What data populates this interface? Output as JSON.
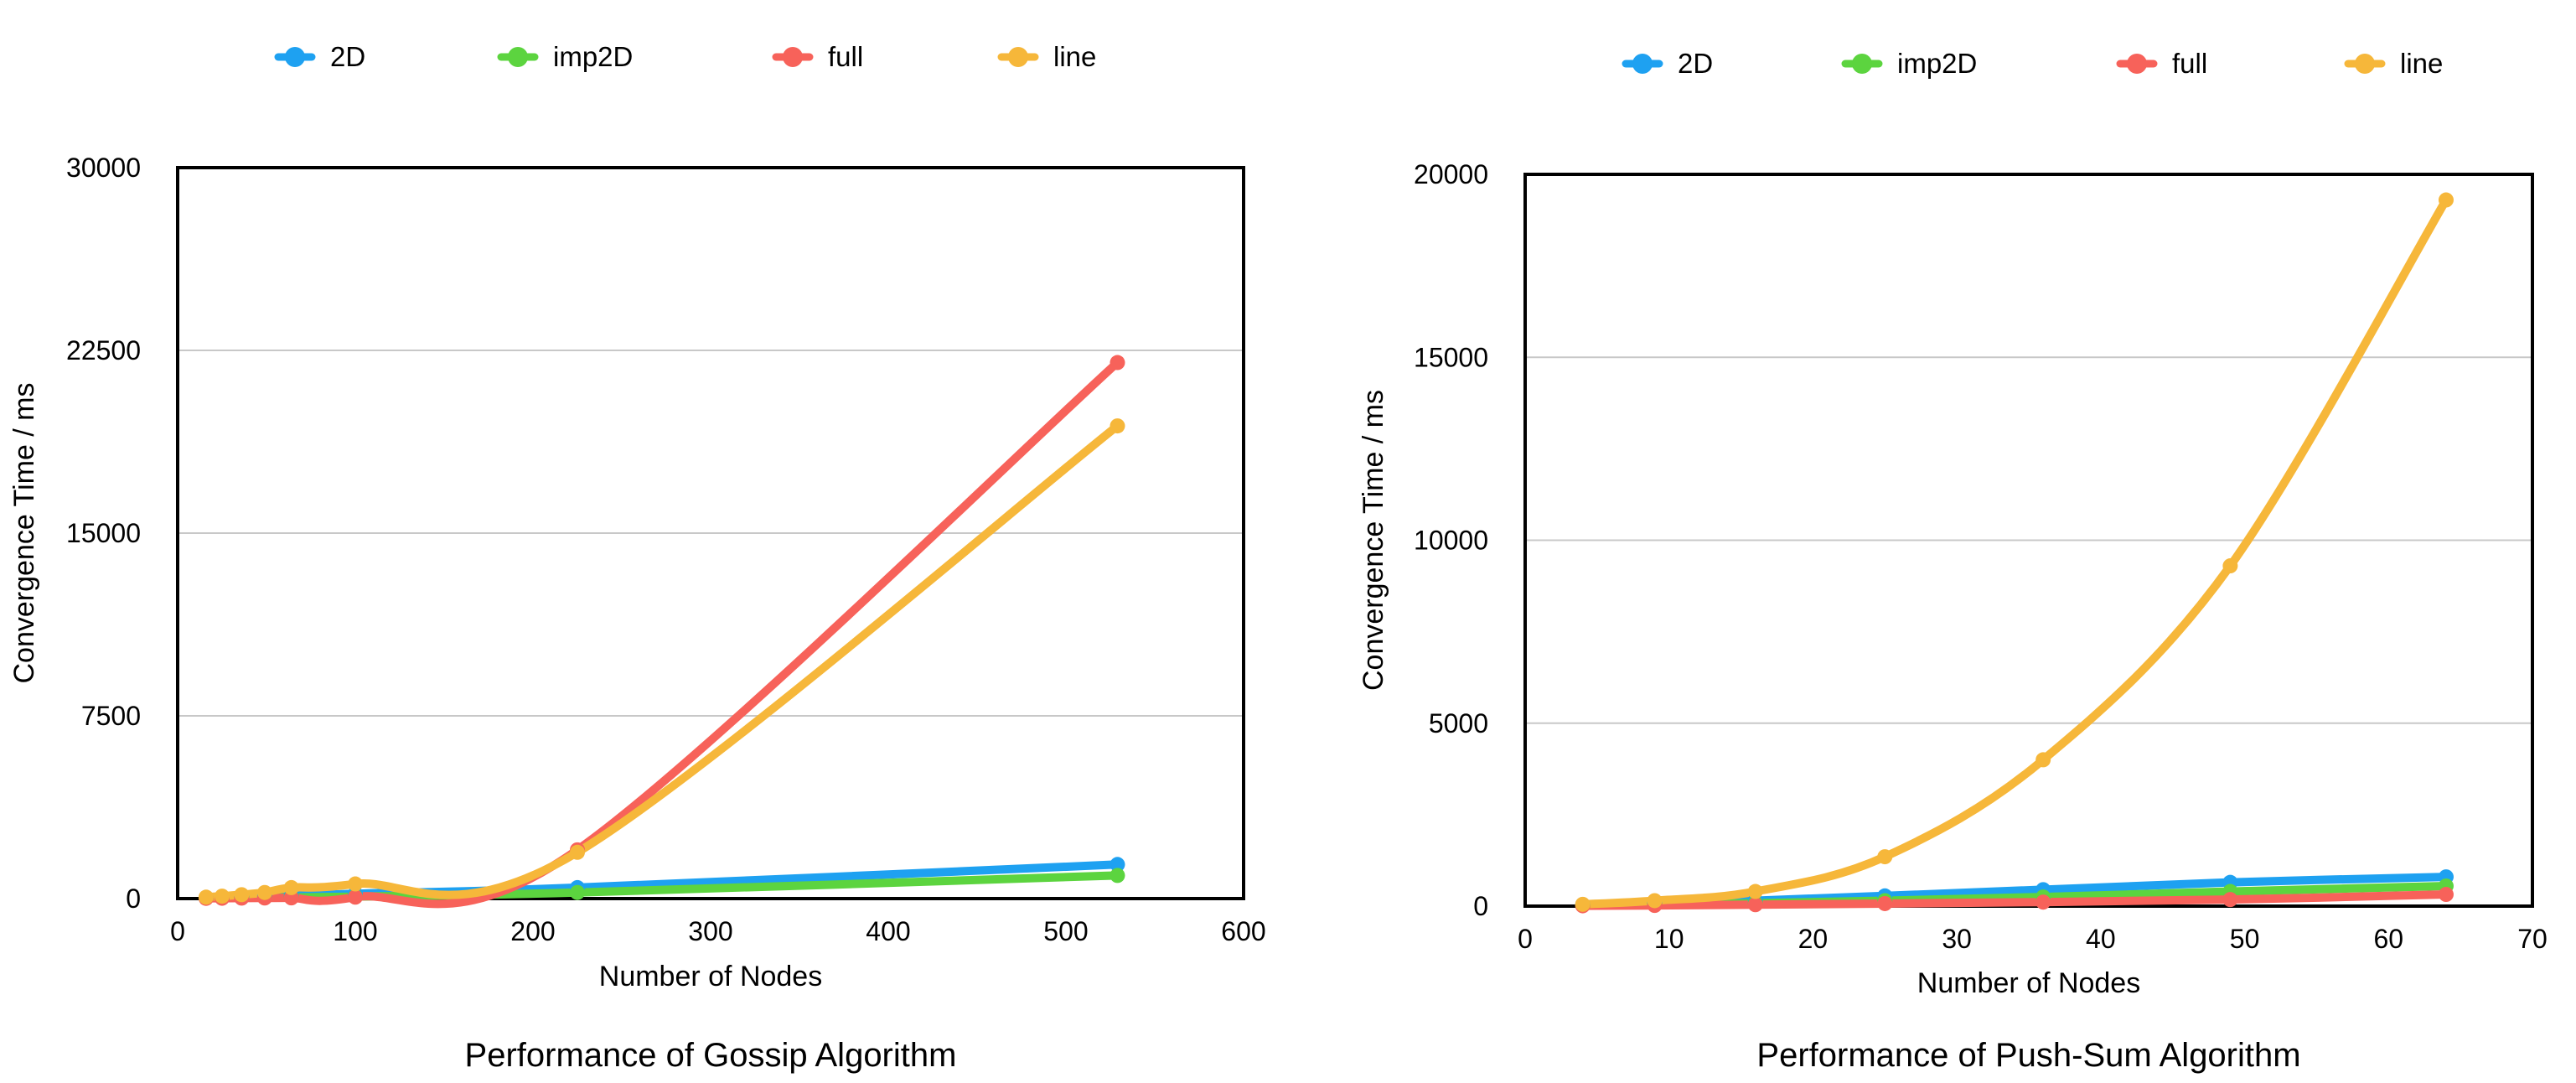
{
  "chart_data": [
    {
      "type": "line",
      "title": "Performance of Gossip Algorithm",
      "xlabel": "Number of Nodes",
      "ylabel": "Convergence Time / ms",
      "xlim": [
        0,
        600
      ],
      "ylim": [
        0,
        30000
      ],
      "xticks": [
        "0",
        "100",
        "200",
        "300",
        "400",
        "500",
        "600"
      ],
      "yticks": [
        "0",
        "7500",
        "15000",
        "22500",
        "30000"
      ],
      "grid": "horizontal",
      "legend": "top",
      "series": [
        {
          "name": "2D",
          "color": "#1ea1f1",
          "x": [
            16,
            25,
            36,
            49,
            64,
            100,
            225,
            529
          ],
          "y": [
            40,
            50,
            70,
            90,
            110,
            200,
            450,
            1400
          ]
        },
        {
          "name": "imp2D",
          "color": "#5cd43f",
          "x": [
            16,
            25,
            36,
            49,
            64,
            100,
            225,
            529
          ],
          "y": [
            20,
            25,
            30,
            40,
            50,
            80,
            250,
            950
          ]
        },
        {
          "name": "full",
          "color": "#f7625a",
          "x": [
            16,
            25,
            36,
            49,
            64,
            100,
            225,
            529
          ],
          "y": [
            10,
            15,
            20,
            25,
            30,
            60,
            2000,
            22000
          ]
        },
        {
          "name": "line",
          "color": "#f6b73a",
          "x": [
            16,
            25,
            36,
            49,
            64,
            100,
            225,
            529
          ],
          "y": [
            60,
            100,
            160,
            250,
            450,
            600,
            1900,
            19400
          ]
        }
      ]
    },
    {
      "type": "line",
      "title": "Performance of Push-Sum Algorithm",
      "xlabel": "Number of Nodes",
      "ylabel": "Convergence Time / ms",
      "xlim": [
        0,
        70
      ],
      "ylim": [
        0,
        20000
      ],
      "xticks": [
        "0",
        "10",
        "20",
        "30",
        "40",
        "50",
        "60",
        "70"
      ],
      "yticks": [
        "0",
        "5000",
        "10000",
        "15000",
        "20000"
      ],
      "grid": "horizontal",
      "legend": "top",
      "series": [
        {
          "name": "2D",
          "color": "#1ea1f1",
          "x": [
            4,
            9,
            16,
            25,
            36,
            49,
            64
          ],
          "y": [
            40,
            80,
            150,
            280,
            450,
            650,
            800
          ]
        },
        {
          "name": "imp2D",
          "color": "#5cd43f",
          "x": [
            4,
            9,
            16,
            25,
            36,
            49,
            64
          ],
          "y": [
            20,
            40,
            80,
            150,
            250,
            400,
            550
          ]
        },
        {
          "name": "full",
          "color": "#f7625a",
          "x": [
            4,
            9,
            16,
            25,
            36,
            49,
            64
          ],
          "y": [
            10,
            20,
            40,
            70,
            110,
            180,
            320
          ]
        },
        {
          "name": "line",
          "color": "#f6b73a",
          "x": [
            4,
            9,
            16,
            25,
            36,
            49,
            64
          ],
          "y": [
            50,
            150,
            400,
            1350,
            4000,
            9300,
            19300
          ]
        }
      ]
    }
  ]
}
